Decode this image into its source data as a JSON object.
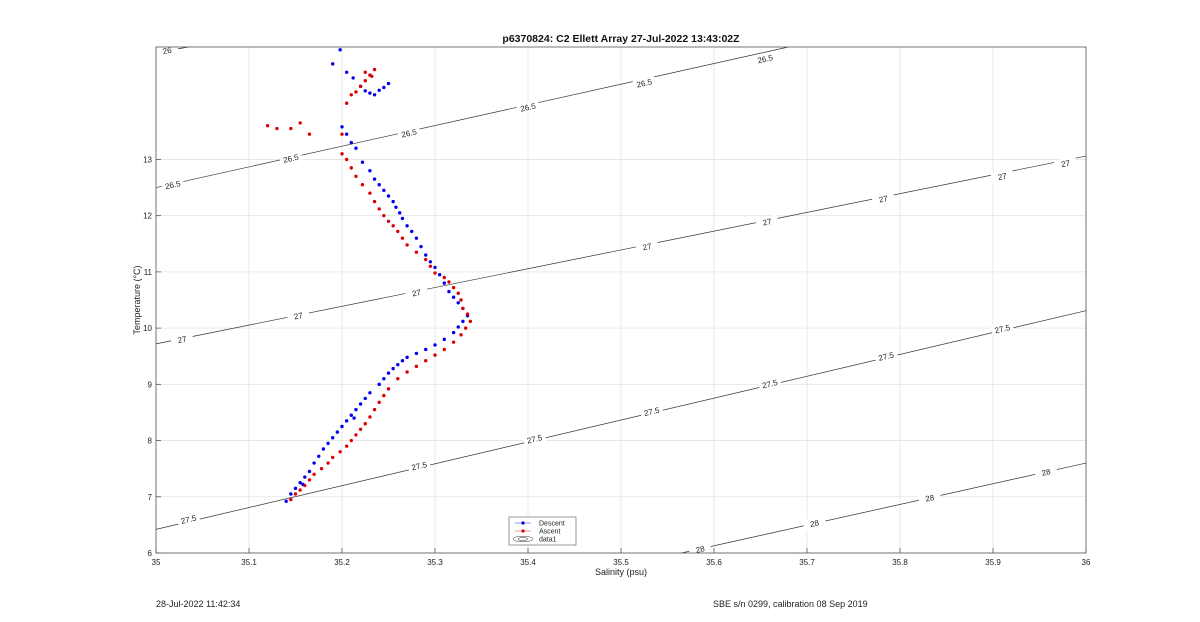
{
  "footer": {
    "left": "28-Jul-2022 11:42:34",
    "right": "SBE s/n 0299, calibration 08 Sep 2019"
  },
  "chart_data": {
    "type": "scatter",
    "title": "p6370824: C2 Ellett Array 27-Jul-2022 13:43:02Z",
    "xlabel": "Salinity (psu)",
    "ylabel": "Temperature (°C)",
    "xlim": [
      35.0,
      36.0
    ],
    "ylim": [
      6,
      15
    ],
    "xticks": [
      35,
      35.1,
      35.2,
      35.3,
      35.4,
      35.5,
      35.6,
      35.7,
      35.8,
      35.9,
      36
    ],
    "xtick_labels": [
      "35",
      "35.1",
      "35.2",
      "35.3",
      "35.4",
      "35.5",
      "35.6",
      "35.7",
      "35.8",
      "35.9",
      "36"
    ],
    "yticks": [
      6,
      7,
      8,
      9,
      10,
      11,
      12,
      13
    ],
    "ytick_labels": [
      "6",
      "7",
      "8",
      "9",
      "10",
      "11",
      "12",
      "13"
    ],
    "grid": true,
    "legend_placement": "bottom-center",
    "legend": [
      "Descent",
      "Ascent",
      "data1"
    ],
    "isopycnals": [
      {
        "level": "26",
        "points": [
          [
            35.0,
            14.9
          ],
          [
            35.035,
            15.0
          ]
        ],
        "labels": [
          [
            35.012,
            14.94
          ]
        ]
      },
      {
        "level": "26.5",
        "points": [
          [
            35.0,
            12.5
          ],
          [
            35.68,
            15.0
          ]
        ],
        "labels": [
          [
            35.018,
            12.55
          ],
          [
            35.145,
            13.02
          ],
          [
            35.272,
            13.47
          ],
          [
            35.4,
            13.93
          ],
          [
            35.525,
            14.36
          ],
          [
            35.655,
            14.79
          ]
        ]
      },
      {
        "level": "27",
        "points": [
          [
            35.0,
            9.72
          ],
          [
            36.0,
            13.06
          ]
        ],
        "labels": [
          [
            35.028,
            9.8
          ],
          [
            35.153,
            10.22
          ],
          [
            35.28,
            10.63
          ],
          [
            35.528,
            11.45
          ],
          [
            35.657,
            11.89
          ],
          [
            35.782,
            12.3
          ],
          [
            35.91,
            12.7
          ],
          [
            35.978,
            12.93
          ]
        ]
      },
      {
        "level": "27.5",
        "points": [
          [
            35.0,
            6.42
          ],
          [
            36.0,
            10.31
          ]
        ],
        "labels": [
          [
            35.035,
            6.6
          ],
          [
            35.283,
            7.55
          ],
          [
            35.407,
            8.03
          ],
          [
            35.533,
            8.52
          ],
          [
            35.66,
            9.01
          ],
          [
            35.785,
            9.5
          ],
          [
            35.91,
            9.99
          ]
        ]
      },
      {
        "level": "28",
        "points": [
          [
            35.565,
            6.0
          ],
          [
            36.0,
            7.6
          ]
        ],
        "labels": [
          [
            35.585,
            6.07
          ],
          [
            35.708,
            6.53
          ],
          [
            35.832,
            6.98
          ],
          [
            35.957,
            7.44
          ]
        ]
      }
    ],
    "series": [
      {
        "name": "Descent",
        "color": "#0000ee",
        "x": [
          35.14,
          35.145,
          35.15,
          35.155,
          35.16,
          35.158,
          35.165,
          35.17,
          35.175,
          35.18,
          35.185,
          35.19,
          35.195,
          35.2,
          35.205,
          35.21,
          35.215,
          35.213,
          35.22,
          35.225,
          35.23,
          35.24,
          35.245,
          35.25,
          35.255,
          35.26,
          35.265,
          35.27,
          35.28,
          35.29,
          35.3,
          35.31,
          35.32,
          35.325,
          35.33,
          35.335,
          35.33,
          35.325,
          35.32,
          35.315,
          35.31,
          35.305,
          35.3,
          35.295,
          35.29,
          35.285,
          35.28,
          35.275,
          35.27,
          35.265,
          35.262,
          35.258,
          35.255,
          35.25,
          35.245,
          35.24,
          35.235,
          35.23,
          35.222,
          35.215,
          35.21,
          35.205,
          35.2,
          35.22,
          35.225,
          35.23,
          35.235,
          35.24,
          35.245,
          35.25,
          35.19,
          35.198,
          35.205,
          35.212
        ],
        "y": [
          6.92,
          7.05,
          7.15,
          7.25,
          7.35,
          7.22,
          7.45,
          7.6,
          7.72,
          7.85,
          7.95,
          8.05,
          8.15,
          8.25,
          8.35,
          8.45,
          8.55,
          8.4,
          8.65,
          8.75,
          8.85,
          9.0,
          9.1,
          9.2,
          9.28,
          9.35,
          9.42,
          9.48,
          9.55,
          9.62,
          9.7,
          9.8,
          9.92,
          10.02,
          10.12,
          10.22,
          10.35,
          10.45,
          10.55,
          10.65,
          10.8,
          10.95,
          11.08,
          11.18,
          11.3,
          11.45,
          11.6,
          11.72,
          11.82,
          11.95,
          12.05,
          12.15,
          12.25,
          12.35,
          12.45,
          12.55,
          12.65,
          12.8,
          12.95,
          13.2,
          13.3,
          13.45,
          13.58,
          14.3,
          14.22,
          14.18,
          14.15,
          14.23,
          14.28,
          14.35,
          14.7,
          14.95,
          14.55,
          14.45
        ]
      },
      {
        "name": "Ascent",
        "color": "#dd0000",
        "x": [
          35.145,
          35.15,
          35.155,
          35.16,
          35.165,
          35.17,
          35.178,
          35.185,
          35.19,
          35.198,
          35.205,
          35.21,
          35.215,
          35.22,
          35.225,
          35.23,
          35.235,
          35.24,
          35.245,
          35.25,
          35.26,
          35.27,
          35.28,
          35.29,
          35.3,
          35.31,
          35.32,
          35.328,
          35.333,
          35.338,
          35.335,
          35.33,
          35.328,
          35.325,
          35.32,
          35.315,
          35.31,
          35.3,
          35.295,
          35.29,
          35.28,
          35.27,
          35.265,
          35.26,
          35.255,
          35.25,
          35.245,
          35.24,
          35.235,
          35.23,
          35.222,
          35.215,
          35.21,
          35.205,
          35.2,
          35.12,
          35.13,
          35.145,
          35.155,
          35.165,
          35.2,
          35.205,
          35.21,
          35.215,
          35.22,
          35.225,
          35.23,
          35.235,
          35.225,
          35.232
        ],
        "y": [
          6.95,
          7.05,
          7.12,
          7.2,
          7.3,
          7.4,
          7.5,
          7.6,
          7.7,
          7.8,
          7.9,
          8.0,
          8.1,
          8.2,
          8.3,
          8.42,
          8.55,
          8.68,
          8.8,
          8.92,
          9.1,
          9.22,
          9.32,
          9.42,
          9.52,
          9.62,
          9.75,
          9.88,
          10.0,
          10.12,
          10.25,
          10.35,
          10.5,
          10.62,
          10.72,
          10.82,
          10.9,
          10.98,
          11.1,
          11.22,
          11.35,
          11.48,
          11.6,
          11.72,
          11.82,
          11.9,
          12.0,
          12.12,
          12.25,
          12.4,
          12.55,
          12.7,
          12.85,
          13.0,
          13.1,
          13.6,
          13.55,
          13.55,
          13.65,
          13.45,
          13.45,
          14.0,
          14.15,
          14.2,
          14.3,
          14.4,
          14.5,
          14.6,
          14.55,
          14.48
        ]
      }
    ]
  }
}
